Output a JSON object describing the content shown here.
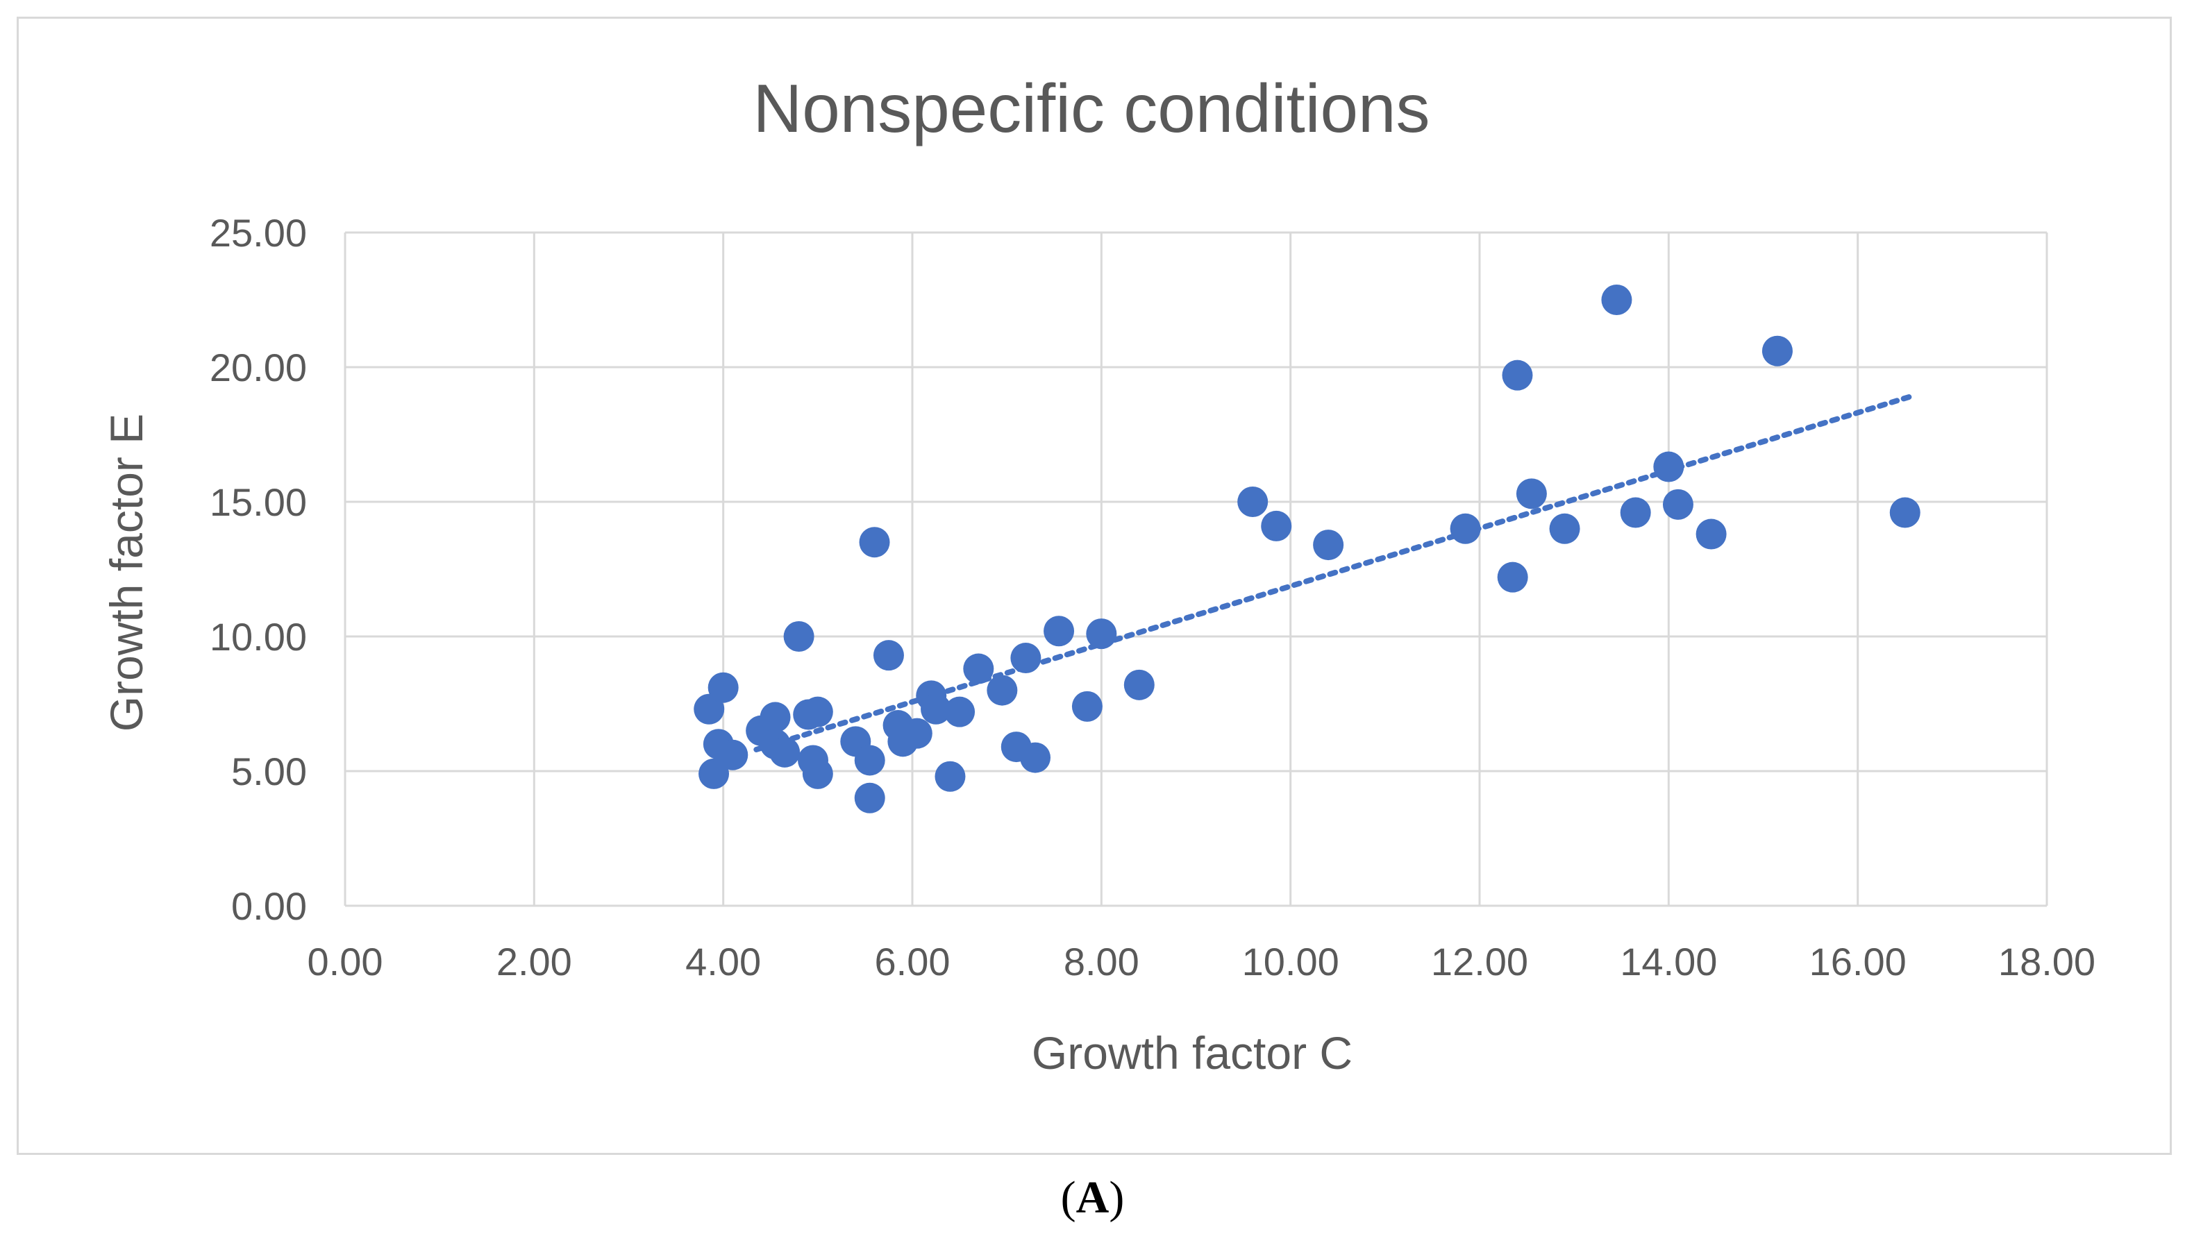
{
  "chart_data": {
    "type": "scatter",
    "title": "Nonspecific conditions",
    "xlabel": "Growth factor C",
    "ylabel": "Growth factor E",
    "xlim": [
      0,
      18
    ],
    "ylim": [
      0,
      25
    ],
    "x_ticks": [
      "0.00",
      "2.00",
      "4.00",
      "6.00",
      "8.00",
      "10.00",
      "12.00",
      "14.00",
      "16.00",
      "18.00"
    ],
    "y_ticks": [
      "0.00",
      "5.00",
      "10.00",
      "15.00",
      "20.00",
      "25.00"
    ],
    "grid": true,
    "marker_color": "#4472c4",
    "trendline": {
      "type": "linear",
      "style": "dotted",
      "start": [
        4.35,
        5.8
      ],
      "end": [
        16.55,
        18.9
      ]
    },
    "series": [
      {
        "name": "Growth factor E",
        "points": [
          [
            3.85,
            7.3
          ],
          [
            3.95,
            6.0
          ],
          [
            4.0,
            8.1
          ],
          [
            3.9,
            4.9
          ],
          [
            4.1,
            5.6
          ],
          [
            4.4,
            6.5
          ],
          [
            4.55,
            7.0
          ],
          [
            4.55,
            6.0
          ],
          [
            4.65,
            5.7
          ],
          [
            4.8,
            10.0
          ],
          [
            4.9,
            7.1
          ],
          [
            5.0,
            7.2
          ],
          [
            4.95,
            5.4
          ],
          [
            5.0,
            4.9
          ],
          [
            5.4,
            6.1
          ],
          [
            5.55,
            5.4
          ],
          [
            5.55,
            4.0
          ],
          [
            5.6,
            13.5
          ],
          [
            5.75,
            9.3
          ],
          [
            5.85,
            6.7
          ],
          [
            5.9,
            6.1
          ],
          [
            6.05,
            6.4
          ],
          [
            6.2,
            7.8
          ],
          [
            6.25,
            7.3
          ],
          [
            6.4,
            4.8
          ],
          [
            6.5,
            7.2
          ],
          [
            6.7,
            8.8
          ],
          [
            6.95,
            8.0
          ],
          [
            7.1,
            5.9
          ],
          [
            7.2,
            9.2
          ],
          [
            7.3,
            5.5
          ],
          [
            7.55,
            10.2
          ],
          [
            7.85,
            7.4
          ],
          [
            8.0,
            10.1
          ],
          [
            8.4,
            8.2
          ],
          [
            9.6,
            15.0
          ],
          [
            9.85,
            14.1
          ],
          [
            10.4,
            13.4
          ],
          [
            11.85,
            14.0
          ],
          [
            12.35,
            12.2
          ],
          [
            12.4,
            19.7
          ],
          [
            12.55,
            15.3
          ],
          [
            12.9,
            14.0
          ],
          [
            13.45,
            22.5
          ],
          [
            13.65,
            14.6
          ],
          [
            14.0,
            16.3
          ],
          [
            14.1,
            14.9
          ],
          [
            14.45,
            13.8
          ],
          [
            15.15,
            20.6
          ],
          [
            16.5,
            14.6
          ]
        ]
      }
    ]
  },
  "caption": {
    "open": "(",
    "label": "A",
    "close": ")"
  }
}
